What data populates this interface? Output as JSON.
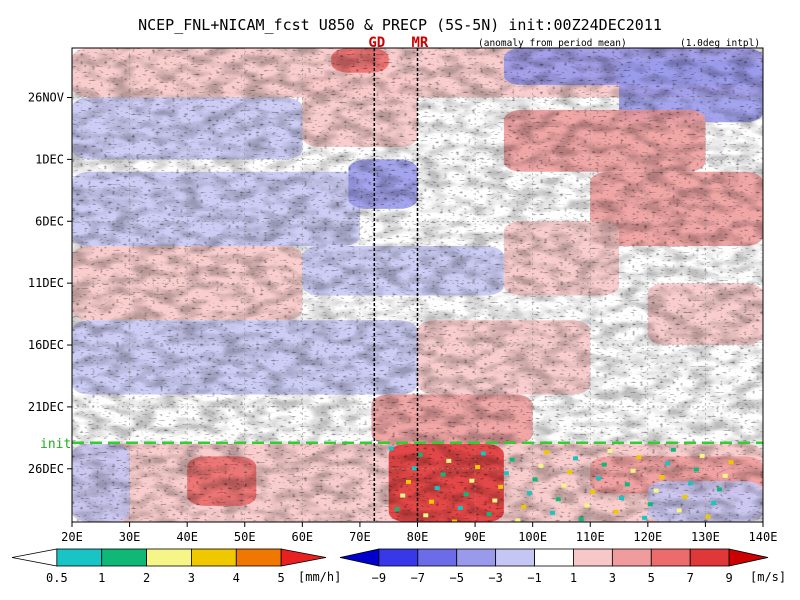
{
  "chart_data": {
    "type": "heatmap",
    "title": "NCEP_FNL+NICAM_fcst U850 & PRECP (5S-5N) init:00Z24DEC2011",
    "subtitle_anomaly": "(anomaly from period mean)",
    "subtitle_interp": "(1.0deg intpl)",
    "x_axis": {
      "range": [
        20,
        140
      ],
      "ticks": [
        20,
        30,
        40,
        50,
        60,
        70,
        80,
        90,
        100,
        110,
        120,
        130,
        140
      ],
      "tick_labels": [
        "20E",
        "30E",
        "40E",
        "50E",
        "60E",
        "70E",
        "80E",
        "90E",
        "100E",
        "110E",
        "120E",
        "130E",
        "140E"
      ]
    },
    "y_axis": {
      "range_days_from_nov22": [
        0,
        38.3
      ],
      "ticks_days": [
        4,
        9,
        14,
        19,
        24,
        29,
        34
      ],
      "tick_labels": [
        "26NOV",
        "1DEC",
        "6DEC",
        "11DEC",
        "16DEC",
        "21DEC",
        "26DEC"
      ],
      "grid": "dotted"
    },
    "init_line": {
      "label": "init",
      "day": 31.9,
      "color": "#33cc33"
    },
    "marker_lines": [
      {
        "label": "GD",
        "lon": 72.5,
        "color": "#cc0000"
      },
      {
        "label": "MR",
        "lon": 80.0,
        "color": "#cc0000"
      }
    ],
    "precip_colorbar": {
      "unit": "[mm/h]",
      "levels": [
        "0.5",
        "1",
        "2",
        "3",
        "4",
        "5"
      ],
      "colors": [
        "#ffffff",
        "#18c4c4",
        "#10b878",
        "#f5f588",
        "#f0c800",
        "#f07800",
        "#e82020"
      ]
    },
    "u850_colorbar": {
      "unit": "[m/s]",
      "levels": [
        "−9",
        "−7",
        "−5",
        "−3",
        "−1",
        "1",
        "3",
        "5",
        "7",
        "9"
      ],
      "colors": [
        "#0000cc",
        "#3838e8",
        "#6c6ce8",
        "#9a9aec",
        "#c6c6f4",
        "#ffffff",
        "#f8c8c8",
        "#f09c9c",
        "#ec6c6c",
        "#e03838",
        "#cc0000"
      ]
    }
  }
}
